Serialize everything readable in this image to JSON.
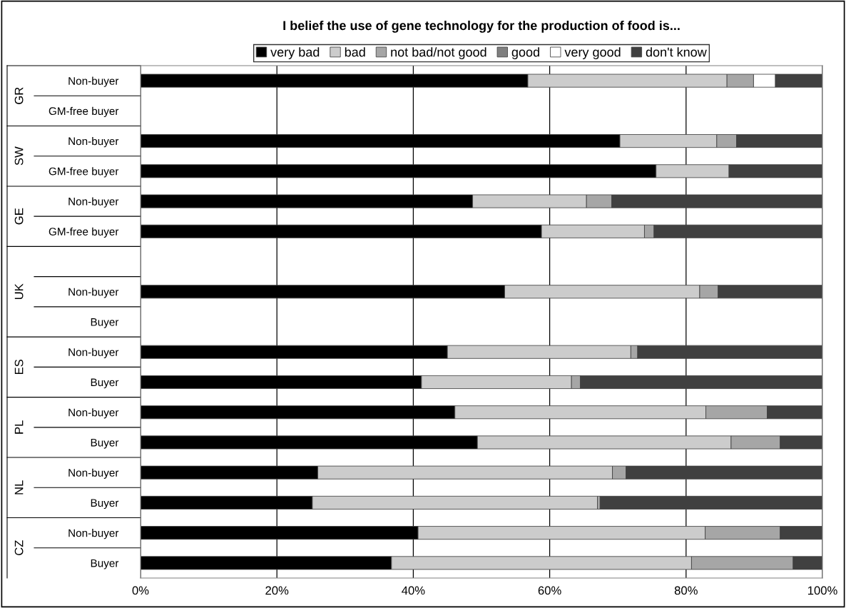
{
  "chart_data": {
    "type": "bar",
    "orientation": "horizontal",
    "stacked": true,
    "title": "I belief the use of gene technology for the production of food is...",
    "categories": [
      "Non-buyer",
      "GM-free buyer",
      "Non-buyer",
      "GM-free buyer",
      "Non-buyer",
      "GM-free buyer",
      null,
      "Non-buyer",
      "Buyer",
      "Non-buyer",
      "Buyer",
      "Non-buyer",
      "Buyer",
      "Non-buyer",
      "Buyer",
      "Non-buyer",
      "Buyer"
    ],
    "annotations": [
      "GR",
      "SW",
      "GE",
      "UK",
      "ES",
      "PL",
      "NL",
      "CZ"
    ],
    "series": [
      {
        "name": "very bad",
        "color": "#000000",
        "values": [
          56.8,
          null,
          70.3,
          75.6,
          48.7,
          58.8,
          null,
          53.4,
          null,
          45.0,
          41.2,
          46.1,
          49.4,
          26.0,
          25.2,
          40.7,
          36.8
        ]
      },
      {
        "name": "bad",
        "color": "#cccccc",
        "values": [
          29.2,
          null,
          14.2,
          10.7,
          16.7,
          15.1,
          null,
          28.6,
          null,
          26.9,
          22.0,
          36.8,
          37.2,
          43.2,
          41.8,
          42.1,
          44.0
        ]
      },
      {
        "name": "not bad/not good",
        "color": "#a6a6a6",
        "values": [
          3.9,
          null,
          2.9,
          0,
          3.7,
          1.4,
          null,
          2.7,
          null,
          1.0,
          1.3,
          9.0,
          7.2,
          2.0,
          0.4,
          11.0,
          14.9
        ]
      },
      {
        "name": "good",
        "color": "#7f7f7f",
        "values": [
          0,
          null,
          0,
          0,
          0,
          0,
          null,
          0,
          null,
          0,
          0,
          0,
          0,
          0,
          0,
          0,
          0
        ]
      },
      {
        "name": "very good",
        "color": "#ffffff",
        "values": [
          3.2,
          null,
          0,
          0,
          0,
          0,
          null,
          0,
          null,
          0,
          0,
          0,
          0,
          0,
          0,
          0,
          0
        ]
      },
      {
        "name": "don't know",
        "color": "#404040",
        "values": [
          6.9,
          null,
          12.6,
          13.7,
          30.9,
          24.7,
          null,
          15.3,
          null,
          27.1,
          35.5,
          8.1,
          6.2,
          28.8,
          32.6,
          6.2,
          4.3
        ]
      }
    ],
    "xlim": [
      0,
      100
    ],
    "xticks": [
      {
        "value": 0,
        "label": "0%"
      },
      {
        "value": 20,
        "label": "20%"
      },
      {
        "value": 40,
        "label": "40%"
      },
      {
        "value": 60,
        "label": "60%"
      },
      {
        "value": 80,
        "label": "80%"
      },
      {
        "value": 100,
        "label": "100%"
      }
    ],
    "grid": "x",
    "legend": "top"
  }
}
